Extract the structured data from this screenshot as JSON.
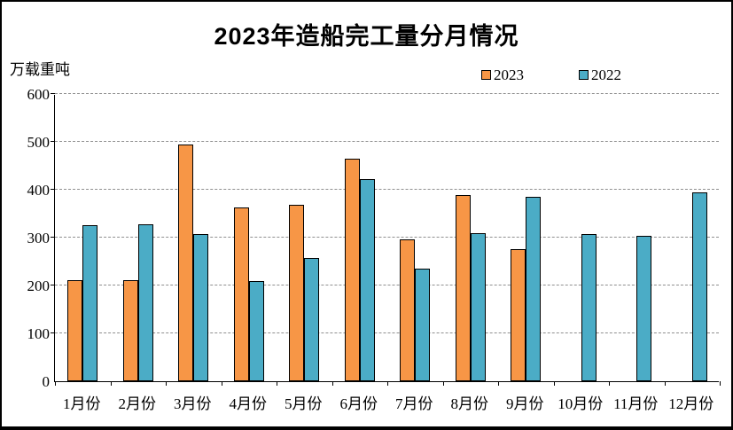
{
  "chart_data": {
    "type": "bar",
    "title": "2023年造船完工量分月情况",
    "unit_label": "万载重吨",
    "categories": [
      "1月份",
      "2月份",
      "3月份",
      "4月份",
      "5月份",
      "6月份",
      "7月份",
      "8月份",
      "9月份",
      "10月份",
      "11月份",
      "12月份"
    ],
    "series": [
      {
        "name": "2023",
        "color": "#F79646",
        "values": [
          211,
          212,
          494,
          363,
          368,
          465,
          297,
          389,
          276,
          null,
          null,
          null
        ]
      },
      {
        "name": "2022",
        "color": "#4BACC6",
        "values": [
          326,
          327,
          308,
          210,
          257,
          422,
          235,
          310,
          385,
          308,
          303,
          395
        ]
      }
    ],
    "ylabel": "",
    "xlabel": "",
    "ylim": [
      0,
      600
    ],
    "yticks": [
      0,
      100,
      200,
      300,
      400,
      500,
      600
    ],
    "grid": "horizontal-dashed",
    "gridline_color": "#909090",
    "axis_color": "#000000",
    "legend_position": "top-right",
    "bar_outline_color": "#000000"
  }
}
